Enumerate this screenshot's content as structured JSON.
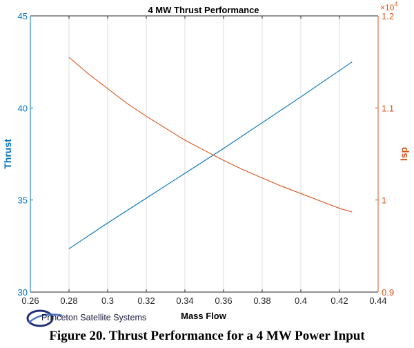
{
  "chart_data": {
    "type": "line",
    "title": "4 MW Thrust Performance",
    "xlabel": "Mass Flow",
    "ylabel_left": "Thrust",
    "ylabel_right": "Isp",
    "right_axis_exponent": "×10",
    "right_axis_exponent_power": "4",
    "xlim": [
      0.26,
      0.44
    ],
    "ylim_left": [
      30,
      45
    ],
    "ylim_right": [
      0.9,
      1.2
    ],
    "x_ticks": [
      "0.26",
      "0.28",
      "0.3",
      "0.32",
      "0.34",
      "0.36",
      "0.38",
      "0.4",
      "0.42",
      "0.44"
    ],
    "y_ticks_left": [
      "30",
      "35",
      "40",
      "45"
    ],
    "y_ticks_right": [
      "0.9",
      "1",
      "1.1",
      "1.2"
    ],
    "grid": "vertical",
    "series": [
      {
        "name": "Thrust",
        "axis": "left",
        "color": "#0072BD",
        "x": [
          0.28,
          0.3,
          0.32,
          0.34,
          0.36,
          0.38,
          0.4,
          0.4265
        ],
        "y": [
          32.35,
          33.75,
          35.1,
          36.45,
          37.8,
          39.2,
          40.6,
          42.5
        ]
      },
      {
        "name": "Isp",
        "axis": "right",
        "color": "#D95319",
        "x": [
          0.28,
          0.29,
          0.3,
          0.31,
          0.32,
          0.33,
          0.34,
          0.35,
          0.36,
          0.37,
          0.38,
          0.39,
          0.4,
          0.41,
          0.42,
          0.4265
        ],
        "y": [
          1.155,
          1.137,
          1.121,
          1.105,
          1.091,
          1.078,
          1.065,
          1.054,
          1.043,
          1.033,
          1.024,
          1.015,
          1.007,
          0.999,
          0.991,
          0.987
        ]
      }
    ],
    "colors": {
      "left_axis": "#0072BD",
      "right_axis": "#D95319",
      "grid": "#dcdcdc"
    }
  },
  "logo": {
    "text": "Princeton Satellite Systems"
  },
  "caption": "Figure 20. Thrust Performance for a 4 MW Power Input"
}
